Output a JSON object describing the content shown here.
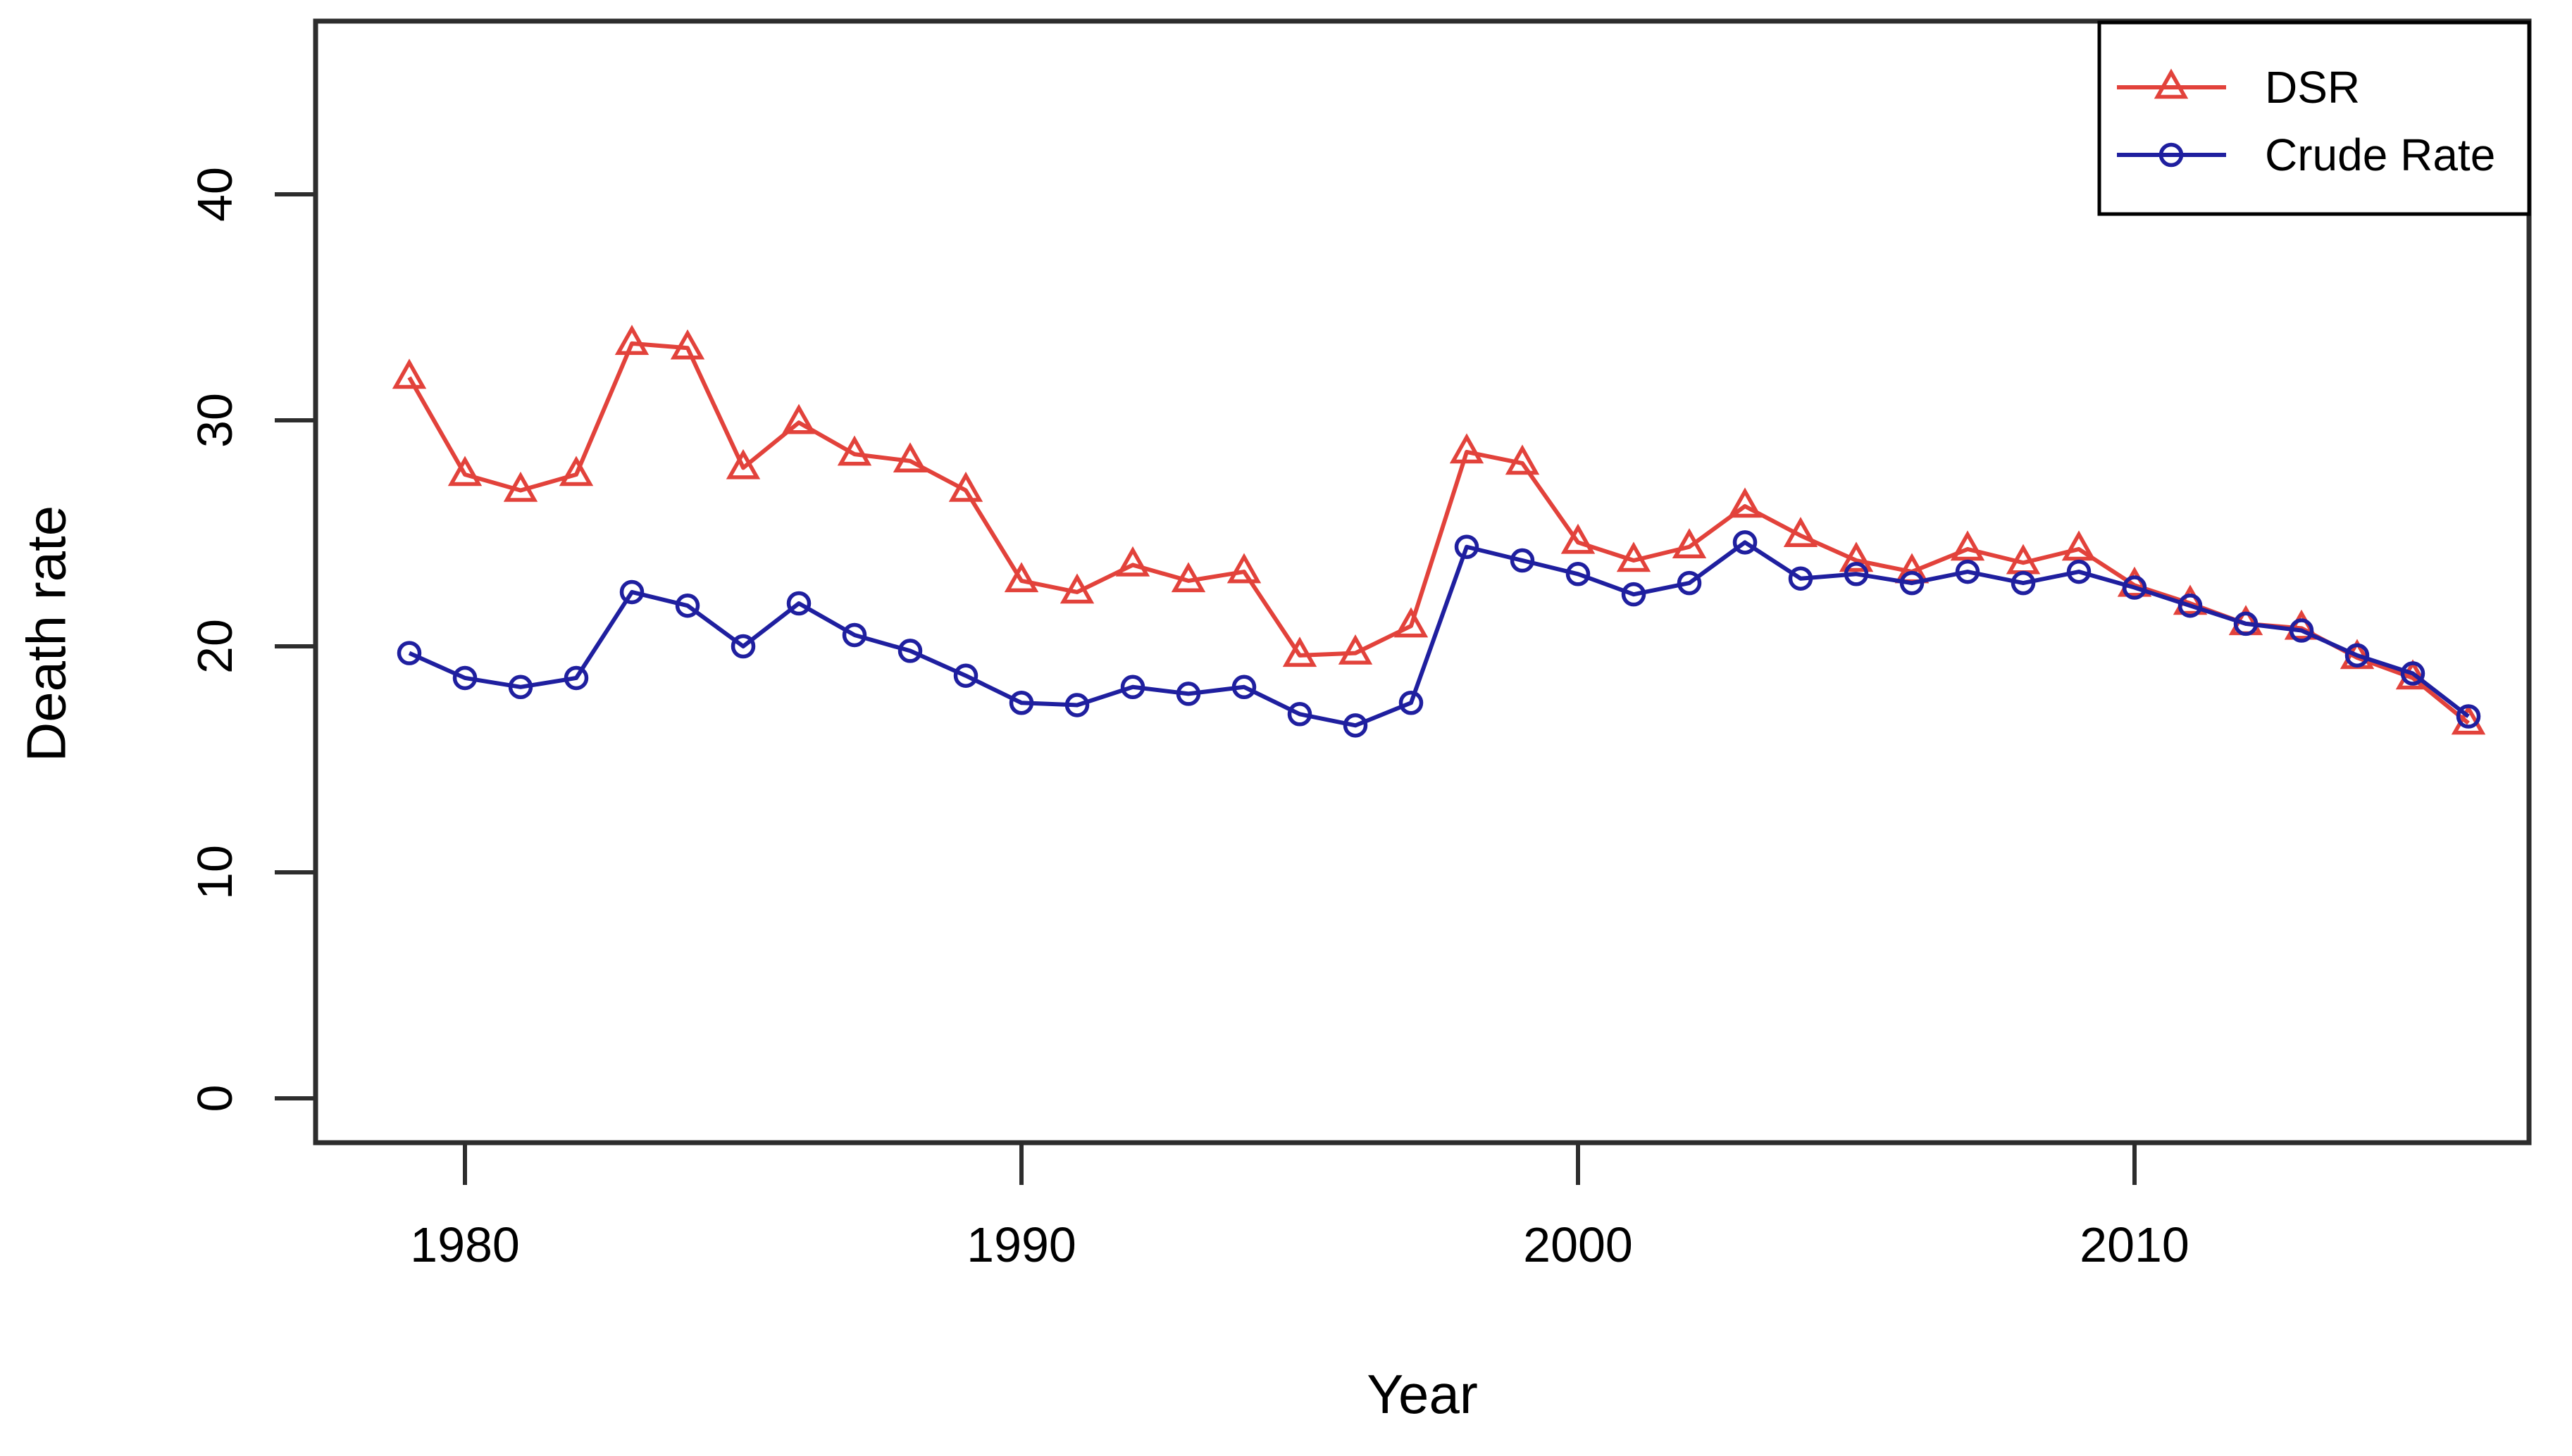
{
  "figure": {
    "xlabel": "Year",
    "ylabel": "Death rate",
    "background_color": "#ffffff",
    "axis_color": "#2d2d2d",
    "text_color": "#000000"
  },
  "legend": {
    "items": [
      {
        "label": "DSR",
        "color": "#e2423b",
        "marker": "triangle-marker-icon"
      },
      {
        "label": "Crude Rate",
        "color": "#1f1f9f",
        "marker": "circle-marker-icon"
      }
    ]
  },
  "chart_data": {
    "type": "line",
    "title": "",
    "xlabel": "Year",
    "ylabel": "Death rate",
    "grid": false,
    "legend_position": "top-right",
    "xlim": [
      1977.3,
      2017.1
    ],
    "ylim": [
      -2,
      47.5
    ],
    "xticks": [
      1980,
      1990,
      2000,
      2010
    ],
    "yticks": [
      0,
      10,
      20,
      30,
      40
    ],
    "x": [
      1979,
      1980,
      1981,
      1982,
      1983,
      1984,
      1985,
      1986,
      1987,
      1988,
      1989,
      1990,
      1991,
      1992,
      1993,
      1994,
      1995,
      1996,
      1997,
      1998,
      1999,
      2000,
      2001,
      2002,
      2003,
      2004,
      2005,
      2006,
      2007,
      2008,
      2009,
      2010,
      2011,
      2012,
      2013,
      2014,
      2015,
      2016
    ],
    "series": [
      {
        "name": "DSR",
        "color": "#e2423b",
        "marker": "triangle",
        "values": [
          31.9,
          27.6,
          26.9,
          27.6,
          33.4,
          33.2,
          27.9,
          29.9,
          28.5,
          28.2,
          26.9,
          22.9,
          22.4,
          23.6,
          22.9,
          23.3,
          19.6,
          19.7,
          20.9,
          28.6,
          28.1,
          24.6,
          23.8,
          24.4,
          26.2,
          24.9,
          23.8,
          23.3,
          24.3,
          23.7,
          24.3,
          22.7,
          21.9,
          21.0,
          20.8,
          19.5,
          18.6,
          16.6
        ]
      },
      {
        "name": "Crude Rate",
        "color": "#1f1f9f",
        "marker": "circle",
        "values": [
          19.7,
          18.6,
          18.2,
          18.6,
          22.4,
          21.8,
          20.0,
          21.9,
          20.5,
          19.8,
          18.7,
          17.5,
          17.4,
          18.2,
          17.9,
          18.2,
          17.0,
          16.5,
          17.5,
          24.4,
          23.8,
          23.2,
          22.3,
          22.8,
          24.6,
          23.0,
          23.2,
          22.8,
          23.3,
          22.8,
          23.3,
          22.6,
          21.8,
          21.0,
          20.7,
          19.6,
          18.8,
          16.9
        ]
      }
    ]
  }
}
